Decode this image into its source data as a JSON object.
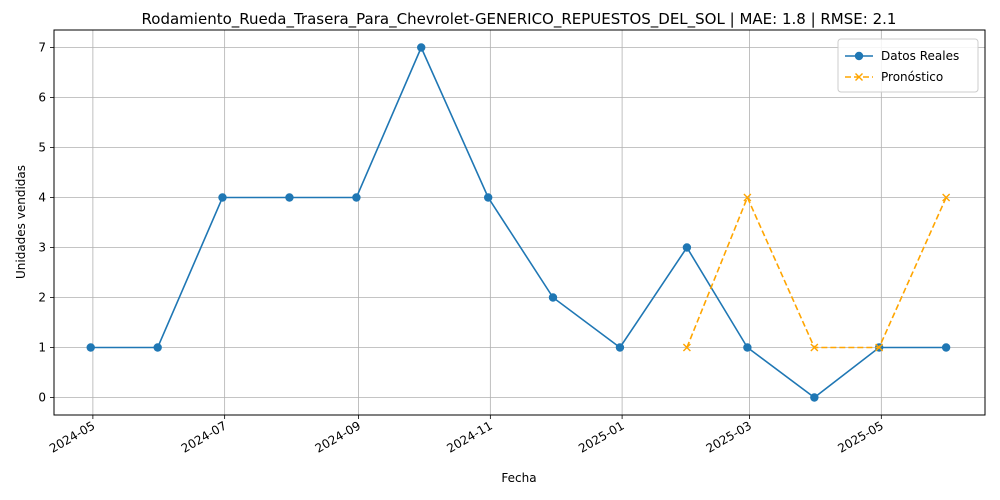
{
  "chart_data": {
    "type": "line",
    "title": "Rodamiento_Rueda_Trasera_Para_Chevrolet-GENERICO_REPUESTOS_DEL_SOL | MAE: 1.8 | RMSE: 2.1",
    "xlabel": "Fecha",
    "ylabel": "Unidades vendidas",
    "x_ticks": [
      "2024-05",
      "2024-07",
      "2024-09",
      "2024-11",
      "2025-01",
      "2025-03",
      "2025-05"
    ],
    "y_ticks": [
      0,
      1,
      2,
      3,
      4,
      5,
      6,
      7
    ],
    "x_range": [
      "2024-04-13",
      "2025-06-18"
    ],
    "ylim": [
      -0.35,
      7.35
    ],
    "grid": true,
    "legend_position": "top-right",
    "series": [
      {
        "name": "Datos Reales",
        "color": "#1f77b4",
        "style": "solid",
        "marker": "circle",
        "x": [
          "2024-04-30",
          "2024-05-31",
          "2024-06-30",
          "2024-07-31",
          "2024-08-31",
          "2024-09-30",
          "2024-10-31",
          "2024-11-30",
          "2024-12-31",
          "2025-01-31",
          "2025-02-28",
          "2025-03-31",
          "2025-04-30",
          "2025-05-31"
        ],
        "values": [
          1,
          1,
          4,
          4,
          4,
          7,
          4,
          2,
          1,
          3,
          1,
          0,
          1,
          1
        ]
      },
      {
        "name": "Pronóstico",
        "color": "#ffa500",
        "style": "dashed",
        "marker": "x",
        "x": [
          "2025-01-31",
          "2025-02-28",
          "2025-03-31",
          "2025-04-30",
          "2025-05-31"
        ],
        "values": [
          1,
          4,
          1,
          1,
          4
        ]
      }
    ]
  }
}
